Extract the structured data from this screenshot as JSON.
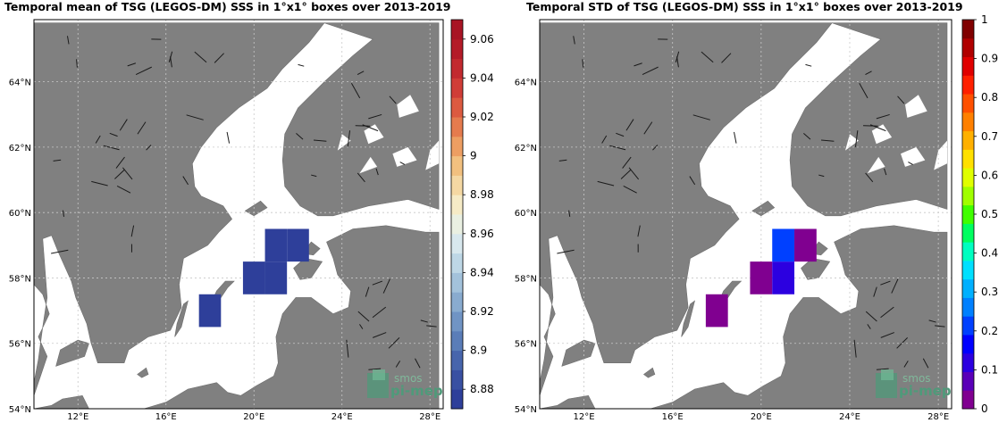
{
  "colors": {
    "land": "#808080",
    "sea": "#ffffff",
    "grid": "#c8c8c8",
    "box_mean": "#2e3f9a",
    "box_std_purple": "#7a0aa0",
    "box_std_indigo": "#3a16d8",
    "box_std_blue": "#0a10ff"
  },
  "lat_ticks": [
    "54°N",
    "56°N",
    "58°N",
    "60°N",
    "62°N",
    "64°N"
  ],
  "lon_ticks": [
    "12°E",
    "16°E",
    "20°E",
    "24°E",
    "28°E"
  ],
  "watermark": {
    "line1": "smos",
    "line2": "pi-mep"
  },
  "chart_data": [
    {
      "type": "heatmap",
      "title": "Temporal mean of TSG (LEGOS-DM) SSS in 1°x1° boxes over 2013-2019",
      "colorbar": {
        "min": 8.87,
        "max": 9.07,
        "ticks": [
          "8.88",
          "8.9",
          "8.92",
          "8.94",
          "8.96",
          "8.98",
          "9",
          "9.02",
          "9.04",
          "9.06"
        ],
        "colors": [
          "#2e3f9a",
          "#3950a2",
          "#4765ac",
          "#5a7db8",
          "#7094c4",
          "#89abcf",
          "#a3c2db",
          "#bed7e6",
          "#d8e8ee",
          "#eaf0e2",
          "#f6ebc6",
          "#f5d8a3",
          "#f2c07f",
          "#ed9e62",
          "#e57b4e",
          "#dc5a40",
          "#d03d37",
          "#c22a2f",
          "#b41b28",
          "#a81424"
        ]
      },
      "cells": [
        {
          "lon": 18,
          "lat": 57,
          "value": 8.875
        },
        {
          "lon": 20,
          "lat": 58,
          "value": 8.875
        },
        {
          "lon": 21,
          "lat": 58,
          "value": 8.875
        },
        {
          "lon": 21,
          "lat": 59,
          "value": 8.875
        },
        {
          "lon": 22,
          "lat": 59,
          "value": 8.875
        }
      ]
    },
    {
      "type": "heatmap",
      "title": "Temporal STD of TSG (LEGOS-DM) SSS in 1°x1° boxes over 2013-2019",
      "colorbar": {
        "min": 0,
        "max": 1,
        "ticks": [
          "0",
          "0.1",
          "0.2",
          "0.3",
          "0.4",
          "0.5",
          "0.6",
          "0.7",
          "0.8",
          "0.9",
          "1"
        ],
        "colors": [
          "#800090",
          "#5a00b8",
          "#2c00e0",
          "#0000ff",
          "#0040ff",
          "#0080ff",
          "#00b0ff",
          "#00e0ff",
          "#00ffc0",
          "#00ff60",
          "#40ff00",
          "#a0ff00",
          "#e0ff00",
          "#ffe000",
          "#ffb000",
          "#ff8000",
          "#ff5000",
          "#ff2000",
          "#e00000",
          "#b00000",
          "#800000"
        ]
      },
      "cells": [
        {
          "lon": 18,
          "lat": 57,
          "value": 0.02
        },
        {
          "lon": 20,
          "lat": 58,
          "value": 0.02
        },
        {
          "lon": 21,
          "lat": 58,
          "value": 0.1
        },
        {
          "lon": 21,
          "lat": 59,
          "value": 0.2
        },
        {
          "lon": 22,
          "lat": 59,
          "value": 0.02
        }
      ]
    }
  ]
}
